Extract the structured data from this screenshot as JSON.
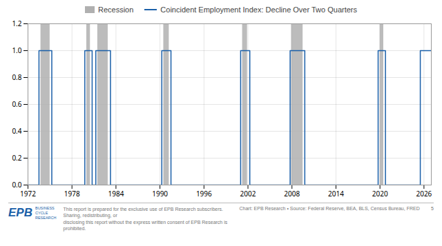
{
  "chart_data": {
    "type": "line",
    "series": [
      {
        "name": "Recession",
        "type": "area",
        "color": "#b0b0b0",
        "periods": [
          [
            1973.75,
            1975.0
          ],
          [
            1980.0,
            1980.5
          ],
          [
            1981.5,
            1982.92
          ],
          [
            1990.5,
            1991.25
          ],
          [
            2001.25,
            2001.92
          ],
          [
            2007.92,
            2009.5
          ],
          [
            2020.0,
            2020.5
          ]
        ]
      },
      {
        "name": "Coincident Employment Index: Decline Over Two Quarters",
        "type": "step",
        "color": "#1a5fa8",
        "x": [
          1972,
          1973.5,
          1975.25,
          1979.75,
          1980.75,
          1981.25,
          1983.25,
          1990.25,
          1991.5,
          2001.0,
          2002.25,
          2007.75,
          2009.75,
          2019.75,
          2020.75,
          2025.5,
          2027
        ],
        "values": [
          0,
          1,
          0,
          1,
          0,
          1,
          0,
          1,
          0,
          1,
          0,
          1,
          0,
          1,
          0,
          1,
          1
        ]
      }
    ],
    "xlim": [
      1972,
      2027
    ],
    "xticks": [
      1972,
      1978,
      1984,
      1990,
      1996,
      2002,
      2008,
      2014,
      2020,
      2026
    ],
    "ylim": [
      0,
      1.2
    ],
    "yticks": [
      {
        "value": 0,
        "label": "0.0"
      },
      0.2,
      0.4,
      0.6,
      0.8,
      {
        "value": 1.0,
        "label": "1.0"
      },
      1.2
    ],
    "grid": true,
    "legend": "top",
    "annotations": [
      "This report is prepared for the exclusive use of EPB Research subscribers. Sharing, redistributing, or\ndisclosing this report without the express written consent of EPB Research is prohibited.",
      "Chart: EPB Research  •  Source: Federal Reserve, BEA, BLS, Census Bureau, FRED",
      "5",
      "EPB",
      "BUSINESS",
      "CYCLE",
      "RESEARCH"
    ]
  }
}
